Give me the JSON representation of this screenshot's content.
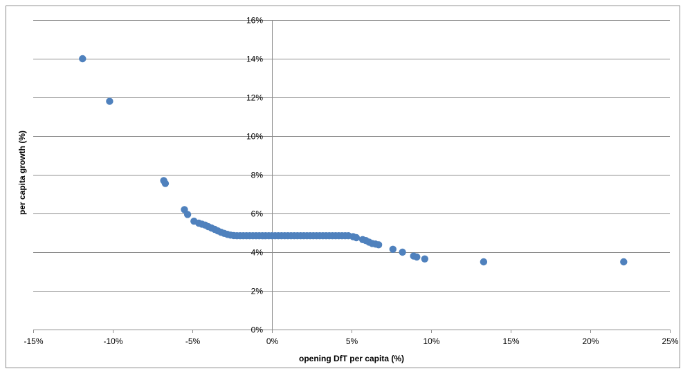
{
  "chart_data": {
    "type": "scatter",
    "title": "",
    "xlabel": "opening DfT per capita (%)",
    "ylabel": "per capita growth (%)",
    "xlim": [
      -15,
      25
    ],
    "ylim": [
      0,
      16
    ],
    "x_ticks": [
      -15,
      -10,
      -5,
      0,
      5,
      10,
      15,
      20,
      25
    ],
    "y_ticks": [
      0,
      2,
      4,
      6,
      8,
      10,
      12,
      14,
      16
    ],
    "x_tick_labels": [
      "-15%",
      "-10%",
      "-5%",
      "0%",
      "5%",
      "10%",
      "15%",
      "20%",
      "25%"
    ],
    "y_tick_labels": [
      "0%",
      "2%",
      "4%",
      "6%",
      "8%",
      "10%",
      "12%",
      "14%",
      "16%"
    ],
    "grid": "horizontal",
    "legend": "none",
    "marker_color": "#4F81BD",
    "series": [
      {
        "points": [
          [
            -11.9,
            14.0
          ],
          [
            -10.2,
            11.8
          ],
          [
            -6.8,
            7.7
          ],
          [
            -6.7,
            7.55
          ],
          [
            -5.5,
            6.2
          ],
          [
            -5.3,
            5.95
          ],
          [
            -4.9,
            5.6
          ],
          [
            -4.6,
            5.5
          ],
          [
            -4.4,
            5.45
          ],
          [
            -4.2,
            5.4
          ],
          [
            -4.0,
            5.32
          ],
          [
            -3.8,
            5.25
          ],
          [
            -3.6,
            5.18
          ],
          [
            -3.4,
            5.1
          ],
          [
            -3.2,
            5.03
          ],
          [
            -3.0,
            4.97
          ],
          [
            -2.8,
            4.92
          ],
          [
            -2.6,
            4.88
          ],
          [
            -2.4,
            4.86
          ],
          [
            -2.2,
            4.85
          ],
          [
            -2.0,
            4.85
          ],
          [
            -1.8,
            4.85
          ],
          [
            -1.6,
            4.85
          ],
          [
            -1.4,
            4.85
          ],
          [
            -1.2,
            4.85
          ],
          [
            -1.0,
            4.85
          ],
          [
            -0.8,
            4.85
          ],
          [
            -0.6,
            4.85
          ],
          [
            -0.4,
            4.85
          ],
          [
            -0.2,
            4.85
          ],
          [
            0.0,
            4.85
          ],
          [
            0.2,
            4.85
          ],
          [
            0.4,
            4.85
          ],
          [
            0.6,
            4.85
          ],
          [
            0.8,
            4.85
          ],
          [
            1.0,
            4.85
          ],
          [
            1.2,
            4.85
          ],
          [
            1.4,
            4.85
          ],
          [
            1.6,
            4.85
          ],
          [
            1.8,
            4.85
          ],
          [
            2.0,
            4.85
          ],
          [
            2.2,
            4.85
          ],
          [
            2.4,
            4.85
          ],
          [
            2.6,
            4.85
          ],
          [
            2.8,
            4.85
          ],
          [
            3.0,
            4.85
          ],
          [
            3.2,
            4.85
          ],
          [
            3.4,
            4.85
          ],
          [
            3.6,
            4.85
          ],
          [
            3.8,
            4.85
          ],
          [
            4.0,
            4.85
          ],
          [
            4.2,
            4.85
          ],
          [
            4.4,
            4.85
          ],
          [
            4.6,
            4.85
          ],
          [
            4.8,
            4.85
          ],
          [
            5.1,
            4.8
          ],
          [
            5.3,
            4.75
          ],
          [
            5.7,
            4.65
          ],
          [
            5.9,
            4.6
          ],
          [
            6.1,
            4.52
          ],
          [
            6.3,
            4.45
          ],
          [
            6.5,
            4.42
          ],
          [
            6.7,
            4.38
          ],
          [
            7.6,
            4.15
          ],
          [
            8.2,
            4.0
          ],
          [
            8.9,
            3.8
          ],
          [
            9.1,
            3.75
          ],
          [
            9.6,
            3.65
          ],
          [
            13.3,
            3.5
          ],
          [
            22.1,
            3.5
          ]
        ]
      }
    ]
  }
}
